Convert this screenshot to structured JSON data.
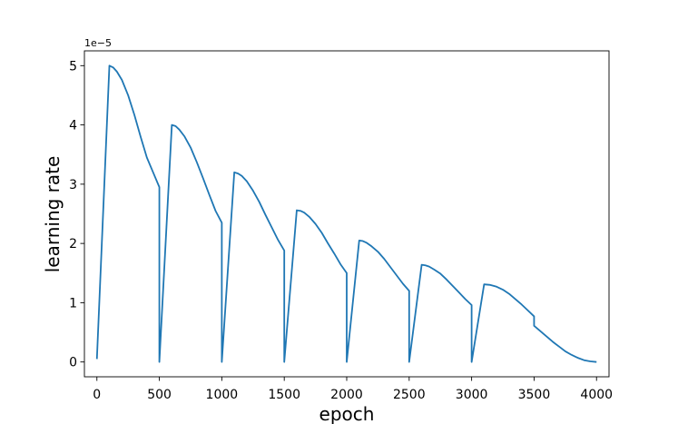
{
  "chart_data": {
    "type": "line",
    "title": "",
    "xlabel": "epoch",
    "ylabel": "learning rate",
    "y_offset_label": "1e−5",
    "xlim": [
      -100,
      4100
    ],
    "ylim": [
      -0.25,
      5.25
    ],
    "x_ticks": [
      0,
      500,
      1000,
      1500,
      2000,
      2500,
      3000,
      3500,
      4000
    ],
    "x_tick_labels": [
      "0",
      "500",
      "1000",
      "1500",
      "2000",
      "2500",
      "3000",
      "3500",
      "4000"
    ],
    "y_ticks": [
      0,
      1,
      2,
      3,
      4,
      5
    ],
    "y_tick_labels": [
      "0",
      "1",
      "2",
      "3",
      "4",
      "5"
    ],
    "y_scale_note": "values in units of 1e-5",
    "grid": false,
    "legend": "none",
    "series": [
      {
        "color": "#1f77b4",
        "x": [
          0,
          100,
          130,
          160,
          200,
          250,
          300,
          350,
          400,
          450,
          500,
          500,
          600,
          630,
          660,
          700,
          750,
          800,
          850,
          900,
          950,
          1000,
          1000,
          1100,
          1130,
          1160,
          1200,
          1250,
          1300,
          1350,
          1400,
          1450,
          1500,
          1500,
          1600,
          1630,
          1660,
          1700,
          1750,
          1800,
          1850,
          1900,
          1950,
          2000,
          2000,
          2100,
          2130,
          2160,
          2200,
          2250,
          2300,
          2350,
          2400,
          2450,
          2500,
          2500,
          2600,
          2630,
          2660,
          2700,
          2750,
          2800,
          2850,
          2900,
          2950,
          3000,
          3000,
          3100,
          3150,
          3200,
          3250,
          3300,
          3350,
          3400,
          3450,
          3500,
          3500,
          3550,
          3600,
          3650,
          3700,
          3750,
          3800,
          3850,
          3900,
          3950,
          4000
        ],
        "y": [
          0.05,
          5.0,
          4.97,
          4.9,
          4.76,
          4.5,
          4.17,
          3.8,
          3.45,
          3.2,
          2.95,
          0.0,
          4.0,
          3.98,
          3.92,
          3.81,
          3.62,
          3.37,
          3.1,
          2.82,
          2.55,
          2.35,
          0.0,
          3.2,
          3.18,
          3.14,
          3.05,
          2.89,
          2.7,
          2.48,
          2.27,
          2.06,
          1.88,
          0.0,
          2.56,
          2.55,
          2.52,
          2.45,
          2.33,
          2.18,
          2.0,
          1.83,
          1.65,
          1.5,
          0.0,
          2.05,
          2.04,
          2.01,
          1.95,
          1.86,
          1.74,
          1.6,
          1.46,
          1.32,
          1.2,
          0.0,
          1.64,
          1.63,
          1.61,
          1.56,
          1.49,
          1.39,
          1.28,
          1.17,
          1.06,
          0.96,
          0.0,
          1.31,
          1.3,
          1.27,
          1.22,
          1.15,
          1.06,
          0.97,
          0.87,
          0.77,
          0.61,
          0.52,
          0.43,
          0.34,
          0.26,
          0.18,
          0.12,
          0.07,
          0.03,
          0.01,
          0.0
        ]
      }
    ]
  }
}
